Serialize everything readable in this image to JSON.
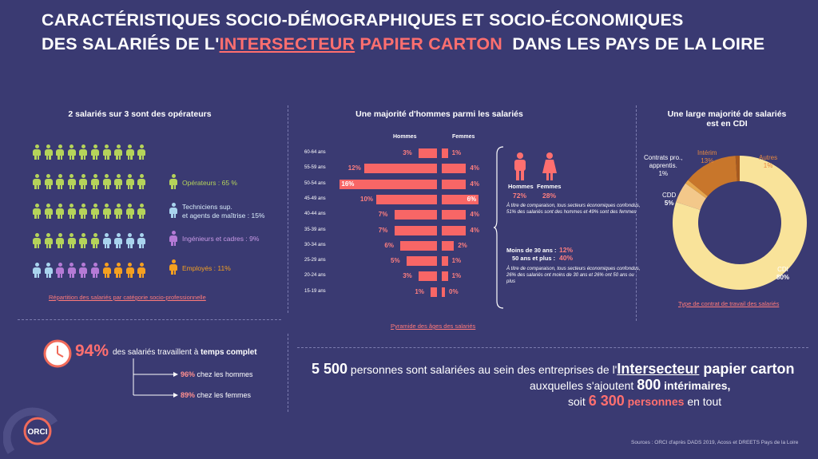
{
  "title": {
    "line1": "CARACTÉRISTIQUES SOCIO-DÉMOGRAPHIQUES ET SOCIO-ÉCONOMIQUES",
    "line2_a": "DES SALARIÉS DE L'",
    "line2_b": "INTERSECTEUR",
    "line2_c": " PAPIER CARTON",
    "line2_d": "  DANS LES PAYS DE LA LOIRE"
  },
  "colors": {
    "bg": "#3a3a72",
    "operateurs": "#b5d35a",
    "techniciens": "#a9d4ee",
    "ingenieurs": "#b57ad6",
    "employes": "#f5a020",
    "accent": "#ff6f6f",
    "cdi": "#f9e39a",
    "interim": "#c8762b"
  },
  "categories": {
    "heading": "2 salariés sur 3 sont des opérateurs",
    "legend": [
      {
        "label": "Opérateurs : 65 %"
      },
      {
        "label": "Techniciens sup.",
        "label2": "et agents de maîtrise : 15%"
      },
      {
        "label": "Ingénieurs et cadres : 9%"
      },
      {
        "label": "Employés : 11%"
      }
    ],
    "caption": "Répartition des salariés par catégorie socio-professionnelle"
  },
  "pyramid": {
    "heading": "Une majorité d'hommes parmi les salariés",
    "men_label": "Hommes",
    "women_label": "Femmes",
    "caption": "Pyramide des âges des salariés"
  },
  "chart_data": {
    "type": "bar",
    "categories": [
      "60-64 ans",
      "55-59 ans",
      "50-54 ans",
      "45-49 ans",
      "40-44 ans",
      "35-39 ans",
      "30-34 ans",
      "25-29 ans",
      "20-24 ans",
      "15-19 ans"
    ],
    "series": [
      {
        "name": "Hommes",
        "values": [
          3,
          12,
          16,
          10,
          7,
          7,
          6,
          5,
          3,
          1
        ],
        "labels": [
          "3%",
          "12%",
          "16%",
          "10%",
          "7%",
          "7%",
          "6%",
          "5%",
          "3%",
          "1%"
        ]
      },
      {
        "name": "Femmes",
        "values": [
          1,
          4,
          4,
          6,
          4,
          4,
          2,
          1,
          1,
          0
        ],
        "labels": [
          "1%",
          "4%",
          "4%",
          "6%",
          "4%",
          "4%",
          "2%",
          "1%",
          "1%",
          "0%"
        ]
      }
    ]
  },
  "gender": {
    "hommes": "Hommes",
    "femmes": "Femmes",
    "hommes_pct": "72%",
    "femmes_pct": "28%",
    "note1": "À titre de comparaison, tous secteurs économiques confondus, 51% des salariés sont des hommes et 49% sont des femmes",
    "moins30_label": "Moins de 30 ans :",
    "moins30_pct": "12%",
    "plus50_label": "50 ans et plus :",
    "plus50_pct": "40%",
    "note2": "À titre de comparaison, tous secteurs économiques confondus, 26% des salariés ont moins de 30 ans et 26% ont 50 ans ou plus"
  },
  "contracts": {
    "heading1": "Une large majorité de salariés",
    "heading2": "est en CDI",
    "caption": "Type de contrat de travail des salariés",
    "chart_data": {
      "type": "pie",
      "slices": [
        {
          "name": "CDI",
          "value": 80,
          "label": "80%"
        },
        {
          "name": "CDD",
          "value": 5,
          "label": "5%"
        },
        {
          "name": "Contrats pro., apprentis.",
          "value": 1,
          "label": "1%"
        },
        {
          "name": "Intérim",
          "value": 13,
          "label": "13%"
        },
        {
          "name": "Autres",
          "value": 1,
          "label": "1%"
        }
      ]
    },
    "labels": {
      "contrats1": "Contrats pro.,",
      "contrats2": "apprentis.",
      "contrats_pct": "1%",
      "interim": "Intérim",
      "interim_pct": "13%",
      "autres": "Autres",
      "autres_pct": "1%",
      "cdd": "CDD",
      "cdd_pct": "5%",
      "cdi": "CDI",
      "cdi_pct": "80%"
    }
  },
  "fulltime": {
    "pct": "94%",
    "text_a": "des salariés travaillent à ",
    "text_b": "temps complet",
    "men_pct": "96%",
    "men_text": " chez les hommes",
    "women_pct": "89%",
    "women_text": " chez les femmes"
  },
  "summary": {
    "n1": "5 500",
    "t1": " personnes sont salariées au sein des entreprises de l'",
    "t1b": "Intersecteur",
    "t1c": " papier carton",
    "t2": "auxquelles s'ajoutent ",
    "n2": "800",
    "t2b": " intérimaires,",
    "t3": "soit ",
    "n3": "6 300",
    "t3b": " personnes",
    "t3c": " en tout"
  },
  "logo": "ORCI",
  "sources": "Sources : ORCI d'après DADS 2019, Acoss et DREETS Pays de la Loire"
}
